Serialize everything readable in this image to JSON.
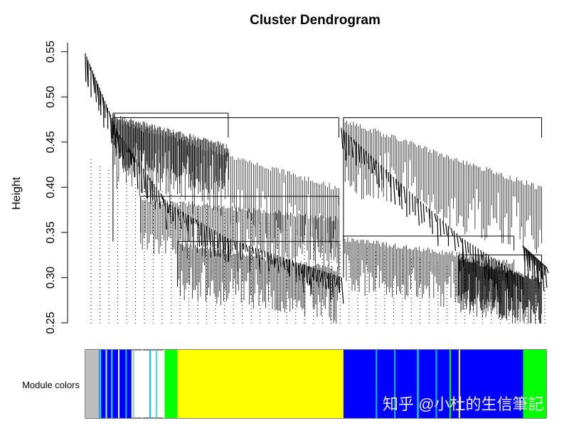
{
  "chart_data": {
    "type": "dendrogram",
    "title": "Cluster Dendrogram",
    "xlabel": "",
    "ylabel": "Height",
    "ylim": [
      0.25,
      0.56
    ],
    "yticks": [
      "0.25",
      "0.30",
      "0.35",
      "0.40",
      "0.45",
      "0.50",
      "0.55"
    ],
    "merges": [
      {
        "name": "left-main-cluster",
        "x": [
          0.06,
          0.55
        ],
        "top": 0.477,
        "branches": [
          0.34,
          0.455
        ]
      },
      {
        "name": "right-main-cluster",
        "x": [
          0.56,
          0.99
        ],
        "top": 0.477,
        "branches": [
          0.34,
          0.455
        ]
      },
      {
        "name": "left-upper-subcluster",
        "x": [
          0.06,
          0.31
        ],
        "top": 0.482,
        "branches": [
          0.42,
          0.455
        ]
      },
      {
        "name": "left-lower-subcluster",
        "x": [
          0.12,
          0.55
        ],
        "top": 0.39,
        "branches": [
          0.35,
          0.38
        ]
      },
      {
        "name": "left-bottom-subcluster",
        "x": [
          0.2,
          0.55
        ],
        "top": 0.34,
        "branches": [
          0.29,
          0.31
        ]
      },
      {
        "name": "right-upper-subcluster",
        "x": [
          0.56,
          0.93
        ],
        "top": 0.346,
        "branches": [
          0.3,
          0.33
        ]
      },
      {
        "name": "right-bottom-subcluster",
        "x": [
          0.81,
          0.99
        ],
        "top": 0.325,
        "branches": [
          0.28,
          0.3
        ]
      }
    ],
    "module_colors_label": "Module colors",
    "modules": [
      {
        "name": "grey",
        "start": 0.0,
        "end": 0.03,
        "color": "#bebebe"
      },
      {
        "name": "mixed-blue",
        "start": 0.03,
        "end": 0.1,
        "color": "#0000ff"
      },
      {
        "name": "green",
        "start": 0.17,
        "end": 0.2,
        "color": "#00ff00"
      },
      {
        "name": "yellow",
        "start": 0.2,
        "end": 0.56,
        "color": "#ffff00"
      },
      {
        "name": "blue",
        "start": 0.56,
        "end": 0.95,
        "color": "#0000ff"
      },
      {
        "name": "green",
        "start": 0.95,
        "end": 1.0,
        "color": "#00ff00"
      }
    ],
    "stripes": [
      {
        "x": 0.031,
        "color": "#00ffff"
      },
      {
        "x": 0.044,
        "color": "#a0ffff"
      },
      {
        "x": 0.056,
        "color": "#40e0d0"
      },
      {
        "x": 0.071,
        "color": "#ffffff"
      },
      {
        "x": 0.087,
        "color": "#20b2aa"
      },
      {
        "x": 0.103,
        "color": "#87ceeb"
      },
      {
        "x": 0.122,
        "color": "#ffffff"
      },
      {
        "x": 0.139,
        "color": "#00bfff"
      },
      {
        "x": 0.153,
        "color": "#40e0d0"
      },
      {
        "x": 0.169,
        "color": "#ffffff"
      },
      {
        "x": 0.63,
        "color": "#00bfff"
      },
      {
        "x": 0.67,
        "color": "#20b2aa"
      },
      {
        "x": 0.72,
        "color": "#00ffff"
      },
      {
        "x": 0.76,
        "color": "#00bfff"
      },
      {
        "x": 0.79,
        "color": "#00ff00"
      },
      {
        "x": 0.81,
        "color": "#ffffff"
      }
    ],
    "watermark": "知乎 @小杜的生信筆記",
    "colors": {
      "line": "#000000",
      "dots": "#000000"
    }
  }
}
